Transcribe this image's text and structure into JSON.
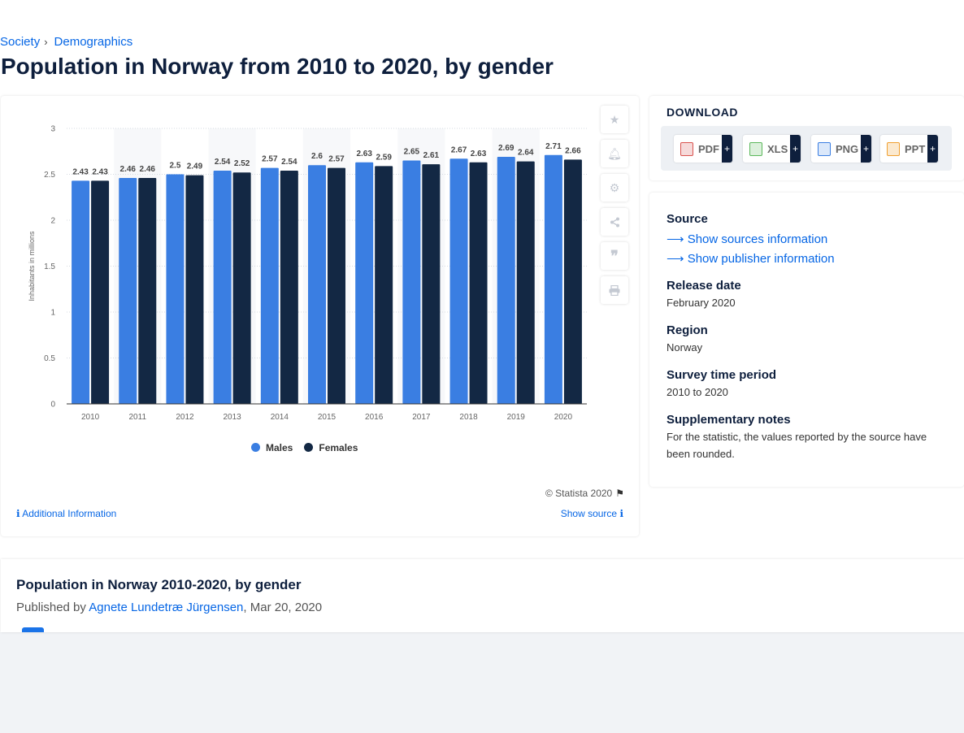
{
  "breadcrumb": {
    "items": [
      "Society",
      "Demographics"
    ],
    "separator": "›"
  },
  "page": {
    "title": "Population in Norway from 2010 to 2020, by gender"
  },
  "chart_data": {
    "type": "bar",
    "title": "",
    "xlabel": "",
    "ylabel": "Inhabitants in millions",
    "categories": [
      "2010",
      "2011",
      "2012",
      "2013",
      "2014",
      "2015",
      "2016",
      "2017",
      "2018",
      "2019",
      "2020"
    ],
    "series": [
      {
        "name": "Males",
        "color": "#3a7ee2",
        "values": [
          2.43,
          2.46,
          2.5,
          2.54,
          2.57,
          2.6,
          2.63,
          2.65,
          2.67,
          2.69,
          2.71
        ]
      },
      {
        "name": "Females",
        "color": "#132844",
        "values": [
          2.43,
          2.46,
          2.49,
          2.52,
          2.54,
          2.57,
          2.59,
          2.61,
          2.63,
          2.64,
          2.66
        ]
      }
    ],
    "ylim": [
      0,
      3
    ],
    "yticks": [
      "0",
      "0.5",
      "1",
      "1.5",
      "2",
      "2.5",
      "3"
    ],
    "grid": true,
    "legend_position": "bottom-left"
  },
  "chart_footer": {
    "copyright": "© Statista 2020",
    "additional_info": "Additional Information",
    "show_source": "Show source"
  },
  "download": {
    "title": "DOWNLOAD",
    "formats": [
      {
        "label": "PDF",
        "icon": "pdf-file-icon",
        "color": "#d9534f"
      },
      {
        "label": "XLS",
        "icon": "xls-file-icon",
        "color": "#5cb85c"
      },
      {
        "label": "PNG",
        "icon": "png-file-icon",
        "color": "#3a7ee2"
      },
      {
        "label": "PPT",
        "icon": "ppt-file-icon",
        "color": "#f0a030"
      }
    ],
    "plus": "+"
  },
  "info": {
    "source_heading": "Source",
    "show_sources": "Show sources information",
    "show_publisher": "Show publisher information",
    "release_heading": "Release date",
    "release_value": "February 2020",
    "region_heading": "Region",
    "region_value": "Norway",
    "survey_heading": "Survey time period",
    "survey_value": "2010 to 2020",
    "notes_heading": "Supplementary notes",
    "notes_value": "For the statistic, the values reported by the source have been rounded."
  },
  "bottom": {
    "title": "Population in Norway 2010-2020, by gender",
    "published_by": "Published by",
    "author": "Agnete Lundetræ Jürgensen",
    "date": ", Mar 20, 2020"
  },
  "tools": [
    "star-icon",
    "bell-icon",
    "gear-icon",
    "share-icon",
    "quote-icon",
    "print-icon"
  ],
  "colors": {
    "accent": "#0666e5",
    "title": "#0e1f3d",
    "males": "#3a7ee2",
    "females": "#132844"
  }
}
